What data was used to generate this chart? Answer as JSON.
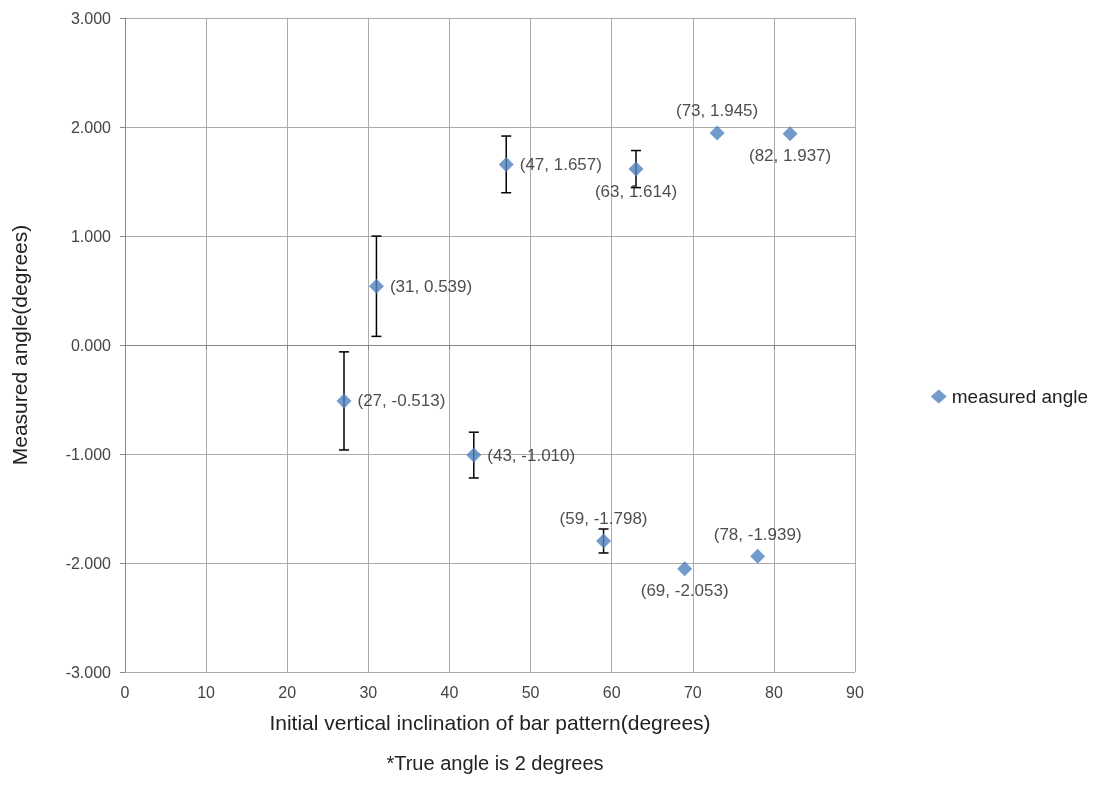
{
  "chart_data": {
    "type": "scatter",
    "xlabel": "Initial vertical inclination of bar pattern(degrees)",
    "ylabel": "Measured angle(degrees)",
    "annotations": [
      "*True angle is 2 degrees"
    ],
    "x": [
      27,
      31,
      43,
      47,
      59,
      63,
      69,
      73,
      78,
      82
    ],
    "series": [
      {
        "name": "measured angle",
        "color": "#4f81bd",
        "values": [
          -0.513,
          0.539,
          -1.01,
          1.657,
          -1.798,
          1.614,
          -2.053,
          1.945,
          -1.939,
          1.937
        ],
        "errors": [
          0.45,
          0.46,
          0.21,
          0.26,
          0.11,
          0.17,
          null,
          null,
          null,
          null
        ],
        "value_labels": [
          "(27, -0.513)",
          "(31, 0.539)",
          "(43, -1.010)",
          "(47, 1.657)",
          "(59, -1.798)",
          "(63, 1.614)",
          "(69, -2.053)",
          "(73, 1.945)",
          "(78, -1.939)",
          "(82, 1.937)"
        ]
      }
    ],
    "xlim": [
      0,
      90
    ],
    "xticks": [
      0,
      10,
      20,
      30,
      40,
      50,
      60,
      70,
      80,
      90
    ],
    "ylim": [
      -3,
      3
    ],
    "yticks": [
      {
        "value": -3,
        "label": "-3.000"
      },
      {
        "value": -2,
        "label": "-2.000"
      },
      {
        "value": -1,
        "label": "-1.000"
      },
      {
        "value": 0,
        "label": "0.000"
      },
      {
        "value": 1,
        "label": "1.000"
      },
      {
        "value": 2,
        "label": "2.000"
      },
      {
        "value": 3,
        "label": "3.000"
      }
    ],
    "grid": true,
    "legend": "right",
    "marker": "diamond"
  }
}
